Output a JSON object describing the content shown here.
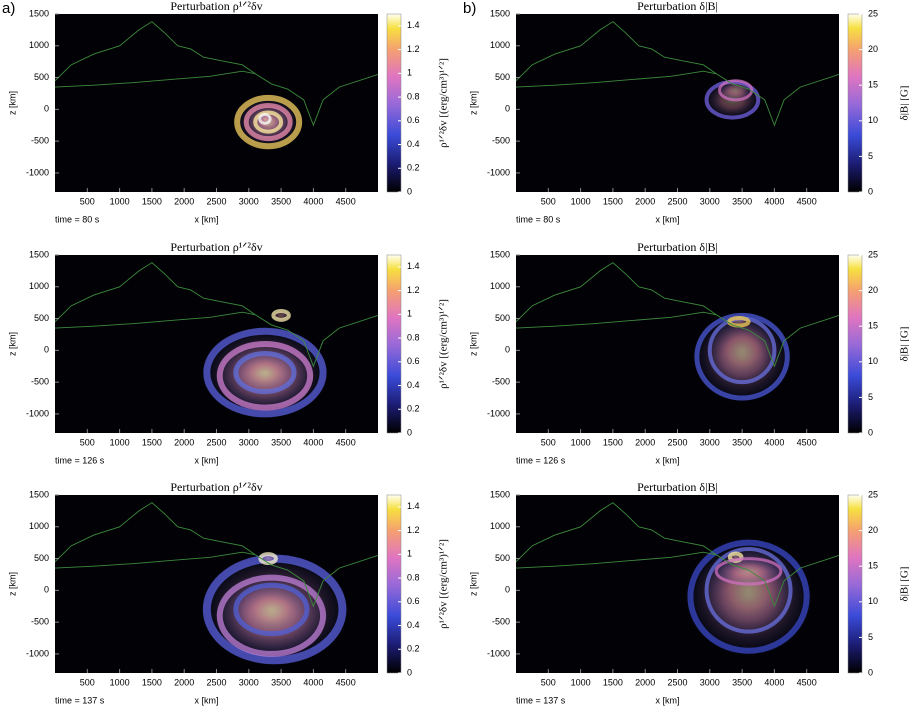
{
  "chart_data": [
    {
      "type": "heatmap",
      "panel_label": "a)",
      "title": "Perturbation ρ¹ᐟ²δv",
      "xlabel": "x [km]",
      "ylabel": "z [km]",
      "annotation": "time = 80 s",
      "xlim": [
        0,
        5000
      ],
      "xticks": [
        500,
        1000,
        1500,
        2000,
        2500,
        3000,
        3500,
        4000,
        4500
      ],
      "ylim": [
        -1300,
        1500
      ],
      "yticks": [
        -1000,
        -500,
        0,
        500,
        1000,
        1500
      ],
      "colorbar_label": "ρ¹ᐟ²δv [(erg/cm³)¹ᐟ²]",
      "clim": [
        0,
        1.5
      ],
      "cticks": [
        0,
        0.2,
        0.4,
        0.6,
        0.8,
        1,
        1.2,
        1.4
      ]
    },
    {
      "type": "heatmap",
      "panel_label": "b)",
      "title": "Perturbation δ|B|",
      "xlabel": "x [km]",
      "ylabel": "z [km]",
      "annotation": "time = 80 s",
      "xlim": [
        0,
        5000
      ],
      "xticks": [
        500,
        1000,
        1500,
        2000,
        2500,
        3000,
        3500,
        4000,
        4500
      ],
      "ylim": [
        -1300,
        1500
      ],
      "yticks": [
        -1000,
        -500,
        0,
        500,
        1000,
        1500
      ],
      "colorbar_label": "δ|B| [G]",
      "clim": [
        0,
        25
      ],
      "cticks": [
        0,
        5,
        10,
        15,
        20,
        25
      ]
    },
    {
      "type": "heatmap",
      "title": "Perturbation ρ¹ᐟ²δv",
      "xlabel": "x [km]",
      "ylabel": "z [km]",
      "annotation": "time = 126 s",
      "xlim": [
        0,
        5000
      ],
      "xticks": [
        500,
        1000,
        1500,
        2000,
        2500,
        3000,
        3500,
        4000,
        4500
      ],
      "ylim": [
        -1300,
        1500
      ],
      "yticks": [
        -1000,
        -500,
        0,
        500,
        1000,
        1500
      ],
      "colorbar_label": "ρ¹ᐟ²δv [(erg/cm³)¹ᐟ²]",
      "clim": [
        0,
        1.5
      ],
      "cticks": [
        0,
        0.2,
        0.4,
        0.6,
        0.8,
        1,
        1.2,
        1.4
      ]
    },
    {
      "type": "heatmap",
      "title": "Perturbation δ|B|",
      "xlabel": "x [km]",
      "ylabel": "z [km]",
      "annotation": "time = 126 s",
      "xlim": [
        0,
        5000
      ],
      "xticks": [
        500,
        1000,
        1500,
        2000,
        2500,
        3000,
        3500,
        4000,
        4500
      ],
      "ylim": [
        -1300,
        1500
      ],
      "yticks": [
        -1000,
        -500,
        0,
        500,
        1000,
        1500
      ],
      "colorbar_label": "δ|B| [G]",
      "clim": [
        0,
        25
      ],
      "cticks": [
        0,
        5,
        10,
        15,
        20,
        25
      ]
    },
    {
      "type": "heatmap",
      "title": "Perturbation ρ¹ᐟ²δv",
      "xlabel": "x [km]",
      "ylabel": "z [km]",
      "annotation": "time = 137 s",
      "xlim": [
        0,
        5000
      ],
      "xticks": [
        500,
        1000,
        1500,
        2000,
        2500,
        3000,
        3500,
        4000,
        4500
      ],
      "ylim": [
        -1300,
        1500
      ],
      "yticks": [
        -1000,
        -500,
        0,
        500,
        1000,
        1500
      ],
      "colorbar_label": "ρ¹ᐟ²δv [(erg/cm³)¹ᐟ²]",
      "clim": [
        0,
        1.5
      ],
      "cticks": [
        0,
        0.2,
        0.4,
        0.6,
        0.8,
        1,
        1.2,
        1.4
      ]
    },
    {
      "type": "heatmap",
      "title": "Perturbation δ|B|",
      "xlabel": "x [km]",
      "ylabel": "z [km]",
      "annotation": "time = 137 s",
      "xlim": [
        0,
        5000
      ],
      "xticks": [
        500,
        1000,
        1500,
        2000,
        2500,
        3000,
        3500,
        4000,
        4500
      ],
      "ylim": [
        -1300,
        1500
      ],
      "yticks": [
        -1000,
        -500,
        0,
        500,
        1000,
        1500
      ],
      "colorbar_label": "δ|B| [G]",
      "clim": [
        0,
        25
      ],
      "cticks": [
        0,
        5,
        10,
        15,
        20,
        25
      ]
    }
  ]
}
